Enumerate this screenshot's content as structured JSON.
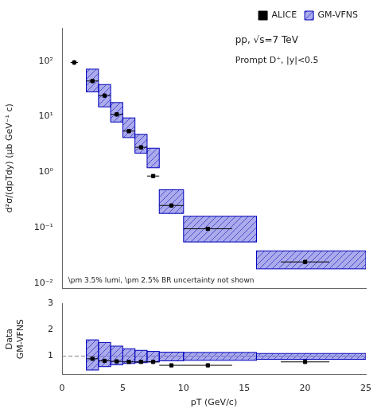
{
  "chart_data": [
    {
      "type": "scatter",
      "log": "y",
      "ylabel": "d²σ/(dpTdy) (μb GeV⁻¹ c)",
      "xlim": [
        0,
        25
      ],
      "xticks": [
        0,
        5,
        10,
        15,
        20,
        25
      ],
      "ylim": [
        0.008,
        400
      ],
      "yticks": [
        {
          "value": 0.01,
          "label": "10⁻²"
        },
        {
          "value": 0.1,
          "label": "10⁻¹"
        },
        {
          "value": 1,
          "label": "10⁰"
        },
        {
          "value": 10,
          "label": "10¹"
        },
        {
          "value": 100,
          "label": "10²"
        }
      ],
      "tick_labels": "y",
      "grid": false,
      "legend": "upper right",
      "annotations": [
        {
          "text": "pp, √s=7 TeV"
        },
        {
          "text": "Prompt D⁺, |y|<0.5"
        },
        {
          "text": "\\pm 3.5% lumi, \\pm 2.5% BR uncertainty not shown"
        }
      ],
      "series": [
        {
          "name": "ALICE",
          "type": "errorbar",
          "marker": "square",
          "color": "#000000",
          "x": [
            1.0,
            2.5,
            3.5,
            4.5,
            5.5,
            6.5,
            7.5,
            9.0,
            12.0,
            20.0
          ],
          "values": [
            95.0,
            44.0,
            24.0,
            11.0,
            5.5,
            2.8,
            0.85,
            0.25,
            0.095,
            0.024
          ],
          "yerr": [
            10.0,
            4.0,
            2.0,
            1.0,
            0.5,
            0.25,
            0.06,
            0.02,
            0.006,
            0.002
          ],
          "xerr": [
            0.3,
            0.5,
            0.5,
            0.5,
            0.5,
            0.5,
            0.5,
            1.0,
            2.0,
            2.0
          ]
        },
        {
          "name": "GM-VFNS",
          "type": "band",
          "color": "#6666DD",
          "edge_color": "#0000BB",
          "x_lo": [
            2.0,
            3.0,
            4.0,
            5.0,
            6.0,
            7.0,
            8.0,
            10.0,
            16.0
          ],
          "x_hi": [
            3.0,
            4.0,
            5.0,
            6.0,
            7.0,
            8.0,
            10.0,
            16.0,
            25.0
          ],
          "y_lo": [
            28.0,
            15.0,
            8.0,
            4.2,
            2.2,
            1.2,
            0.18,
            0.055,
            0.018
          ],
          "y_hi": [
            72.0,
            38.0,
            18.0,
            9.5,
            4.8,
            2.7,
            0.48,
            0.16,
            0.038
          ]
        }
      ]
    },
    {
      "type": "scatter",
      "xlabel": "pT (GeV/c)",
      "ylabel": [
        "Data",
        "GM-VFNS"
      ],
      "xlim": [
        0,
        25
      ],
      "xticks": [
        0,
        5,
        10,
        15,
        20,
        25
      ],
      "ylim": [
        0.3,
        3.0
      ],
      "yticks": [
        1,
        2,
        3
      ],
      "grid": false,
      "hline": {
        "value": 1.0,
        "color": "gray",
        "line_style": "dashed"
      },
      "series": [
        {
          "type": "band",
          "color": "#6666DD",
          "edge_color": "#0000BB",
          "x_lo": [
            2.0,
            3.0,
            4.0,
            5.0,
            6.0,
            7.0,
            8.0,
            10.0,
            16.0
          ],
          "x_hi": [
            3.0,
            4.0,
            5.0,
            6.0,
            7.0,
            8.0,
            10.0,
            16.0,
            25.0
          ],
          "y_lo": [
            0.47,
            0.6,
            0.67,
            0.72,
            0.75,
            0.78,
            0.82,
            0.84,
            0.88
          ],
          "y_hi": [
            1.62,
            1.52,
            1.38,
            1.28,
            1.22,
            1.18,
            1.15,
            1.14,
            1.1
          ]
        },
        {
          "type": "errorbar",
          "marker": "square",
          "color": "#000000",
          "x": [
            2.5,
            3.5,
            4.5,
            5.5,
            6.5,
            7.5,
            9.0,
            12.0,
            20.0
          ],
          "values": [
            0.9,
            0.82,
            0.8,
            0.78,
            0.78,
            0.78,
            0.65,
            0.65,
            0.78
          ],
          "yerr": [
            0.07,
            0.05,
            0.05,
            0.05,
            0.04,
            0.04,
            0.04,
            0.04,
            0.05
          ],
          "xerr": [
            0.5,
            0.5,
            0.5,
            0.5,
            0.5,
            0.5,
            1.0,
            2.0,
            2.0
          ]
        }
      ]
    }
  ]
}
